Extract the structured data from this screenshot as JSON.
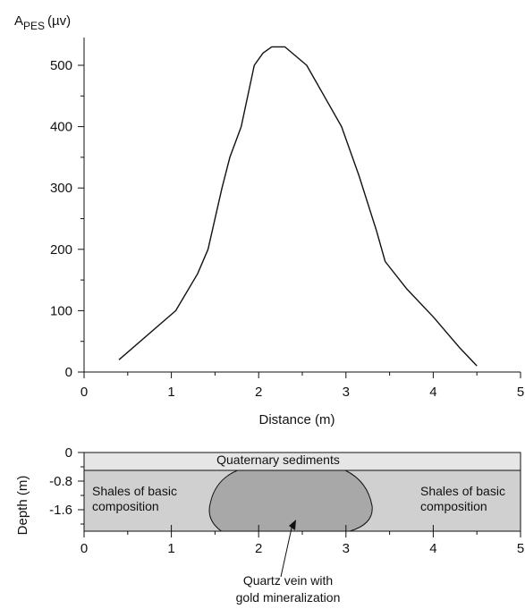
{
  "chart_data": [
    {
      "type": "line",
      "ylabel_main": "A",
      "ylabel_sub": "PES",
      "ylabel_unit": "(µv)",
      "xlabel": "Distance (m)",
      "xlim": [
        0,
        5
      ],
      "ylim": [
        0,
        550
      ],
      "x_ticks": [
        0,
        1,
        2,
        3,
        4,
        5
      ],
      "y_ticks": [
        0,
        100,
        200,
        300,
        400,
        500
      ],
      "y_minor_ticks": [
        50,
        150,
        250,
        350,
        450
      ],
      "x_minor_ticks": [
        0.5,
        1.5,
        2.5,
        3.5,
        4.5
      ],
      "series": [
        {
          "x": [
            0.4,
            1.05,
            1.3,
            1.42,
            1.58,
            1.67,
            1.8,
            1.95,
            2.05,
            2.15,
            2.3,
            2.55,
            2.75,
            2.95,
            3.15,
            3.35,
            3.45,
            3.7,
            4.0,
            4.3,
            4.5
          ],
          "y": [
            20,
            100,
            160,
            200,
            300,
            350,
            400,
            500,
            520,
            530,
            530,
            500,
            450,
            400,
            320,
            230,
            180,
            135,
            90,
            40,
            10
          ]
        }
      ]
    },
    {
      "type": "cross-section",
      "ylabel": "Depth (m)",
      "xlim": [
        0,
        5
      ],
      "ylim": [
        -2.2,
        0
      ],
      "x_ticks": [
        0,
        1,
        2,
        3,
        4,
        5
      ],
      "y_ticks": [
        0,
        -0.8,
        -1.6
      ],
      "y_tick_labels": [
        "0",
        "-0.8",
        "-1.6"
      ],
      "layers": [
        {
          "label": "Quaternary sediments",
          "top": 0,
          "bottom": -0.5,
          "color": "#e6e6e6"
        },
        {
          "label_left": "Shales of basic",
          "label_left_2": "composition",
          "label_right": "Shales of basic",
          "label_right_2": "composition",
          "top": -0.5,
          "bottom": -2.2,
          "color": "#d0d0d0"
        }
      ],
      "vein": {
        "label_1": "Quartz vein with",
        "label_2": "gold mineralization",
        "color": "#a8a8a8",
        "x_range": [
          1.45,
          3.3
        ]
      }
    }
  ]
}
